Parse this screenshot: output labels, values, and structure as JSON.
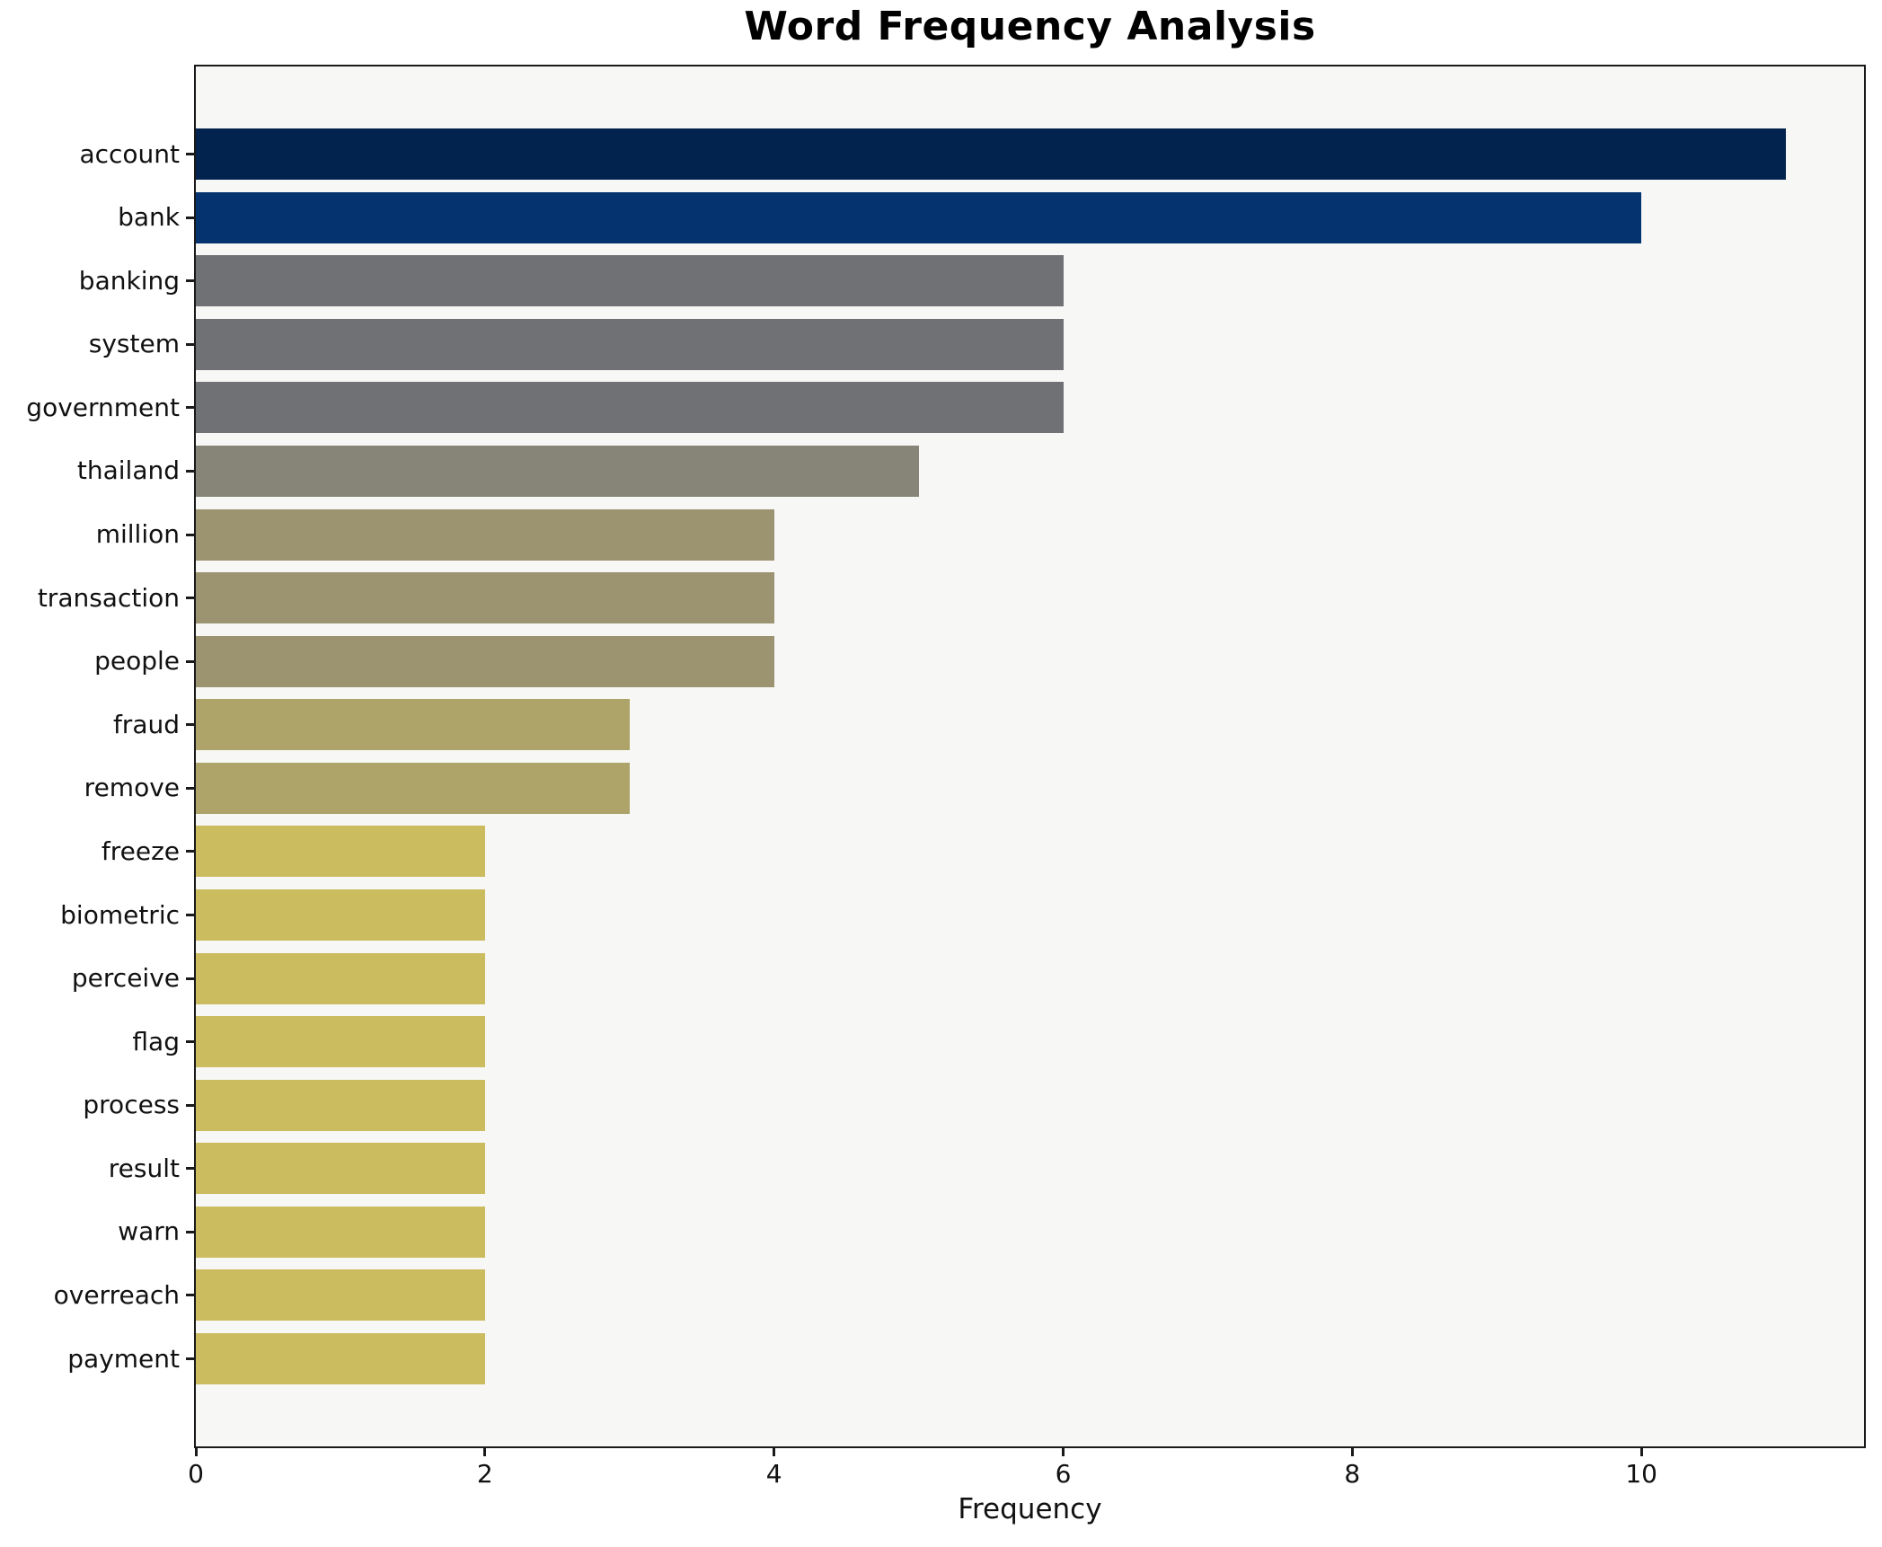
{
  "chart_data": {
    "type": "bar",
    "orientation": "horizontal",
    "title": "Word Frequency Analysis",
    "xlabel": "Frequency",
    "ylabel": "",
    "categories": [
      "account",
      "bank",
      "banking",
      "system",
      "government",
      "thailand",
      "million",
      "transaction",
      "people",
      "fraud",
      "remove",
      "freeze",
      "biometric",
      "perceive",
      "flag",
      "process",
      "result",
      "warn",
      "overreach",
      "payment"
    ],
    "values": [
      11,
      10,
      6,
      6,
      6,
      5,
      4,
      4,
      4,
      3,
      3,
      2,
      2,
      2,
      2,
      2,
      2,
      2,
      2,
      2
    ],
    "bar_colors": [
      "#02234D",
      "#053370",
      "#707174",
      "#707174",
      "#707174",
      "#878577",
      "#9C9371",
      "#9C9371",
      "#9C9371",
      "#AEA46A",
      "#AEA46A",
      "#CCBC60",
      "#CCBC60",
      "#CCBC60",
      "#CCBC60",
      "#CCBC60",
      "#CCBC60",
      "#CCBC60",
      "#CCBC60",
      "#CCBC60"
    ],
    "x_ticks": [
      0,
      2,
      4,
      6,
      8,
      10
    ],
    "xlim": [
      0,
      11.54
    ],
    "grid": false,
    "legend_position": "none",
    "plot_background": "#F7F7F5",
    "figure_background": "#FFFFFF",
    "axis_color": "#1A1A1A"
  }
}
